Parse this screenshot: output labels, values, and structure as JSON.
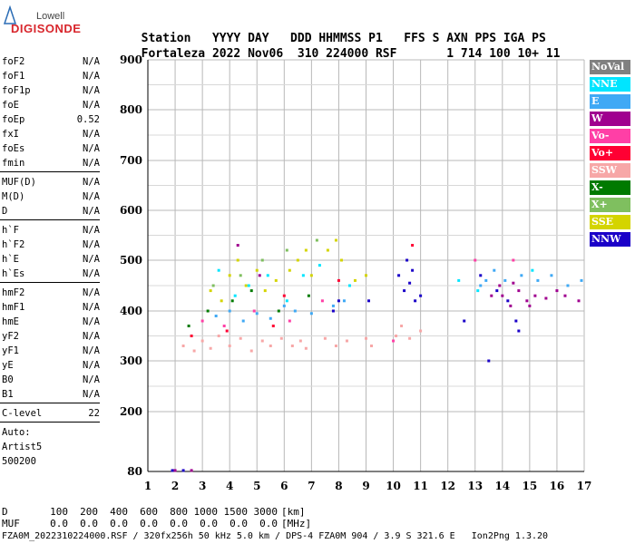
{
  "logo": {
    "top": "Lowell",
    "main": "DIGISONDE"
  },
  "header": {
    "labels": [
      "Station",
      "YYYY DAY",
      "DDD HHMMSS P1",
      "FFS S AXN PPS IGA PS"
    ],
    "values": [
      "Fortaleza",
      "2022 Nov06",
      "310 224000 RSF",
      "1 714 100 10+ 11"
    ]
  },
  "params": {
    "group1": [
      {
        "label": "foF2",
        "value": "N/A"
      },
      {
        "label": "foF1",
        "value": "N/A"
      },
      {
        "label": "foF1p",
        "value": "N/A"
      },
      {
        "label": "foE",
        "value": "N/A"
      },
      {
        "label": "foEp",
        "value": "0.52"
      },
      {
        "label": "fxI",
        "value": "N/A"
      },
      {
        "label": "foEs",
        "value": "N/A"
      },
      {
        "label": "fmin",
        "value": "N/A"
      }
    ],
    "group2": [
      {
        "label": "MUF(D)",
        "value": "N/A"
      },
      {
        "label": "M(D)",
        "value": "N/A"
      },
      {
        "label": "D",
        "value": "N/A"
      }
    ],
    "group3": [
      {
        "label": "h`F",
        "value": "N/A"
      },
      {
        "label": "h`F2",
        "value": "N/A"
      },
      {
        "label": "h`E",
        "value": "N/A"
      },
      {
        "label": "h`Es",
        "value": "N/A"
      }
    ],
    "group4": [
      {
        "label": "hmF2",
        "value": "N/A"
      },
      {
        "label": "hmF1",
        "value": "N/A"
      },
      {
        "label": "hmE",
        "value": "N/A"
      },
      {
        "label": "yF2",
        "value": "N/A"
      },
      {
        "label": "yF1",
        "value": "N/A"
      },
      {
        "label": "yE",
        "value": "N/A"
      },
      {
        "label": "B0",
        "value": "N/A"
      },
      {
        "label": "B1",
        "value": "N/A"
      }
    ],
    "clevel": {
      "label": "C-level",
      "value": "22"
    },
    "auto": [
      "Auto:",
      "Artist5",
      "500200"
    ]
  },
  "legend": [
    {
      "label": "NoVal",
      "color": "#808080"
    },
    {
      "label": "NNE",
      "color": "#00e5ff"
    },
    {
      "label": "E",
      "color": "#3fa9f5"
    },
    {
      "label": "W",
      "color": "#a0008f"
    },
    {
      "label": "Vo-",
      "color": "#ff3fa6"
    },
    {
      "label": "Vo+",
      "color": "#ff0033"
    },
    {
      "label": "SSW",
      "color": "#f7a7a7"
    },
    {
      "label": "X-",
      "color": "#007a00"
    },
    {
      "label": "X+",
      "color": "#7fbf5f"
    },
    {
      "label": "SSE",
      "color": "#d4d400"
    },
    {
      "label": "NNW",
      "color": "#1a00c8"
    }
  ],
  "footer": {
    "d_label": "D",
    "d_values": [
      "100",
      "200",
      "400",
      "600",
      "800",
      "1000",
      "1500",
      "3000"
    ],
    "d_unit": "[km]",
    "muf_label": "MUF",
    "muf_values": [
      "0.0",
      "0.0",
      "0.0",
      "0.0",
      "0.0",
      "0.0",
      "0.0",
      "0.0"
    ],
    "muf_unit": "[MHz]",
    "info": "FZA0M_2022310224000.RSF / 320fx256h 50 kHz 5.0 km / DPS-4 FZA0M 904 / 3.9 S 321.6 E   Ion2Png 1.3.20"
  },
  "chart_data": {
    "type": "scatter",
    "xlim": [
      1,
      17
    ],
    "ylim": [
      80,
      900
    ],
    "xticks": [
      1,
      2,
      3,
      4,
      5,
      6,
      7,
      8,
      9,
      10,
      11,
      12,
      13,
      14,
      15,
      16,
      17
    ],
    "yticks": [
      80,
      200,
      300,
      400,
      500,
      600,
      700,
      800,
      900
    ],
    "grid": true,
    "series": [
      {
        "name": "NNW",
        "color": "#1a00c8",
        "points": [
          [
            10.2,
            470
          ],
          [
            10.4,
            440
          ],
          [
            10.6,
            455
          ],
          [
            10.8,
            420
          ],
          [
            10.5,
            500
          ],
          [
            10.7,
            480
          ],
          [
            14.5,
            380
          ],
          [
            14.6,
            360
          ],
          [
            14.2,
            420
          ],
          [
            13.8,
            440
          ],
          [
            12.6,
            380
          ],
          [
            13.2,
            470
          ],
          [
            13.5,
            300
          ],
          [
            11.0,
            430
          ],
          [
            7.8,
            400
          ],
          [
            8.0,
            420
          ],
          [
            9.1,
            420
          ],
          [
            1.9,
            82
          ],
          [
            2.3,
            82
          ]
        ]
      },
      {
        "name": "W",
        "color": "#a0008f",
        "points": [
          [
            14.0,
            430
          ],
          [
            14.3,
            410
          ],
          [
            14.6,
            440
          ],
          [
            14.9,
            420
          ],
          [
            15.2,
            430
          ],
          [
            15.6,
            425
          ],
          [
            16.0,
            440
          ],
          [
            16.3,
            430
          ],
          [
            16.8,
            420
          ],
          [
            13.6,
            430
          ],
          [
            13.9,
            450
          ],
          [
            14.4,
            455
          ],
          [
            15.0,
            410
          ],
          [
            2.0,
            82
          ],
          [
            2.6,
            82
          ],
          [
            4.3,
            530
          ],
          [
            5.1,
            470
          ]
        ]
      },
      {
        "name": "E",
        "color": "#3fa9f5",
        "points": [
          [
            13.2,
            450
          ],
          [
            13.4,
            460
          ],
          [
            13.7,
            480
          ],
          [
            14.1,
            460
          ],
          [
            14.7,
            470
          ],
          [
            15.3,
            460
          ],
          [
            15.8,
            470
          ],
          [
            16.4,
            450
          ],
          [
            16.9,
            460
          ],
          [
            3.5,
            390
          ],
          [
            4.0,
            400
          ],
          [
            4.5,
            380
          ],
          [
            5.0,
            395
          ],
          [
            5.5,
            385
          ],
          [
            6.0,
            410
          ],
          [
            6.4,
            400
          ],
          [
            7.0,
            395
          ],
          [
            7.8,
            410
          ],
          [
            8.2,
            420
          ]
        ]
      },
      {
        "name": "SSW",
        "color": "#f7a7a7",
        "points": [
          [
            2.3,
            330
          ],
          [
            2.7,
            320
          ],
          [
            3.0,
            340
          ],
          [
            3.3,
            325
          ],
          [
            3.6,
            350
          ],
          [
            4.0,
            330
          ],
          [
            4.4,
            345
          ],
          [
            4.8,
            320
          ],
          [
            5.2,
            340
          ],
          [
            5.5,
            330
          ],
          [
            5.9,
            345
          ],
          [
            6.3,
            330
          ],
          [
            6.6,
            340
          ],
          [
            6.8,
            325
          ],
          [
            7.5,
            345
          ],
          [
            7.9,
            330
          ],
          [
            8.3,
            340
          ],
          [
            9.0,
            345
          ],
          [
            9.2,
            330
          ],
          [
            10.1,
            350
          ],
          [
            10.3,
            370
          ],
          [
            10.6,
            345
          ],
          [
            11.0,
            360
          ]
        ]
      },
      {
        "name": "SSE",
        "color": "#d4d400",
        "points": [
          [
            4.0,
            470
          ],
          [
            4.3,
            500
          ],
          [
            4.6,
            450
          ],
          [
            5.0,
            480
          ],
          [
            5.3,
            440
          ],
          [
            5.7,
            460
          ],
          [
            6.2,
            480
          ],
          [
            6.5,
            500
          ],
          [
            6.8,
            520
          ],
          [
            7.0,
            470
          ],
          [
            7.6,
            520
          ],
          [
            7.9,
            540
          ],
          [
            8.1,
            500
          ],
          [
            8.6,
            460
          ],
          [
            9.0,
            470
          ],
          [
            3.3,
            440
          ],
          [
            3.7,
            420
          ]
        ]
      },
      {
        "name": "NNE",
        "color": "#00e5ff",
        "points": [
          [
            3.6,
            480
          ],
          [
            4.2,
            430
          ],
          [
            4.7,
            450
          ],
          [
            5.4,
            470
          ],
          [
            6.1,
            420
          ],
          [
            6.7,
            470
          ],
          [
            7.3,
            490
          ],
          [
            8.4,
            450
          ],
          [
            12.4,
            460
          ],
          [
            13.1,
            440
          ],
          [
            15.1,
            480
          ]
        ]
      },
      {
        "name": "Vo-",
        "color": "#ff3fa6",
        "points": [
          [
            3.0,
            380
          ],
          [
            3.8,
            370
          ],
          [
            4.9,
            400
          ],
          [
            6.2,
            380
          ],
          [
            7.4,
            420
          ],
          [
            10.0,
            340
          ],
          [
            13.0,
            500
          ],
          [
            14.4,
            500
          ]
        ]
      },
      {
        "name": "Vo+",
        "color": "#ff0033",
        "points": [
          [
            2.6,
            350
          ],
          [
            3.9,
            360
          ],
          [
            5.6,
            370
          ],
          [
            6.0,
            430
          ],
          [
            8.0,
            460
          ],
          [
            10.7,
            530
          ]
        ]
      },
      {
        "name": "X-",
        "color": "#007a00",
        "points": [
          [
            2.5,
            370
          ],
          [
            3.2,
            400
          ],
          [
            4.1,
            420
          ],
          [
            4.8,
            440
          ],
          [
            5.8,
            400
          ],
          [
            6.9,
            430
          ]
        ]
      },
      {
        "name": "X+",
        "color": "#7fbf5f",
        "points": [
          [
            3.4,
            450
          ],
          [
            4.4,
            470
          ],
          [
            5.2,
            500
          ],
          [
            6.1,
            520
          ],
          [
            7.2,
            540
          ]
        ]
      }
    ]
  }
}
